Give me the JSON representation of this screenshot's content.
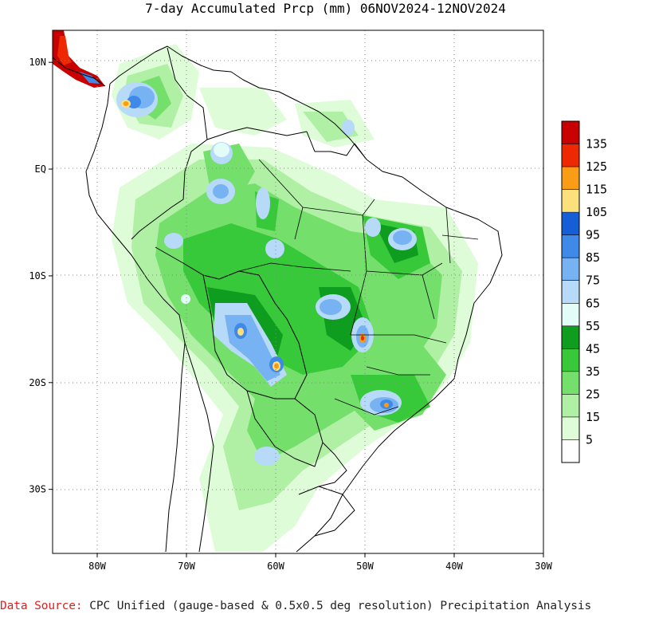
{
  "title": "7-day Accumulated Prcp (mm) 06NOV2024-12NOV2024",
  "map": {
    "lon_range": [
      -85,
      -30
    ],
    "lat_range": [
      -36,
      13
    ],
    "x_ticks": [
      {
        "lon": -80,
        "label": "80W"
      },
      {
        "lon": -70,
        "label": "70W"
      },
      {
        "lon": -60,
        "label": "60W"
      },
      {
        "lon": -50,
        "label": "50W"
      },
      {
        "lon": -40,
        "label": "40W"
      },
      {
        "lon": -30,
        "label": "30W"
      }
    ],
    "y_ticks": [
      {
        "lat": 10,
        "label": "10N"
      },
      {
        "lat": 0,
        "label": "EQ"
      },
      {
        "lat": -10,
        "label": "10S"
      },
      {
        "lat": -20,
        "label": "20S"
      },
      {
        "lat": -30,
        "label": "30S"
      }
    ],
    "gridlines": "dotted"
  },
  "legend": {
    "unit": "mm",
    "levels": [
      "135",
      "125",
      "115",
      "105",
      "95",
      "85",
      "75",
      "65",
      "55",
      "45",
      "35",
      "25",
      "15",
      "5"
    ],
    "colors": [
      "#c80000",
      "#ee2800",
      "#fb9c17",
      "#fce07c",
      "#155ed6",
      "#3f8ae8",
      "#77b3f2",
      "#b7daf9",
      "#e2fcf8",
      "#0f9d1f",
      "#38c93a",
      "#74df6b",
      "#b0f0a4",
      "#dffcd8",
      "#ffffff"
    ]
  },
  "source": {
    "label": "Data Source:",
    "text": "CPC Unified (gauge-based & 0.5x0.5 deg resolution) Precipitation Analysis"
  }
}
